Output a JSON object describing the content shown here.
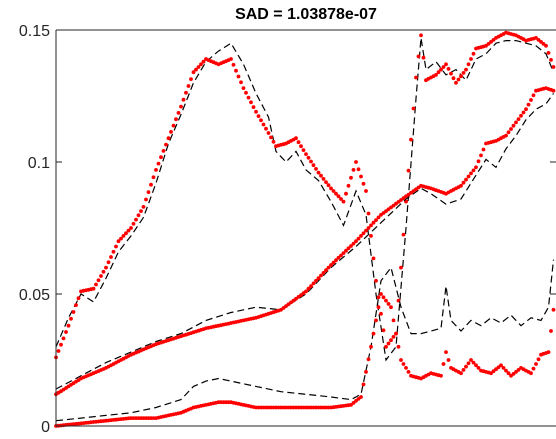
{
  "chart_data": {
    "type": "line",
    "title": "SAD = 1.03878e-07",
    "xlabel": "",
    "ylabel": "",
    "ylim": [
      0,
      0.15
    ],
    "xlim": [
      0,
      200
    ],
    "y_ticks": [
      {
        "value": 0,
        "label": "0"
      },
      {
        "value": 0.05,
        "label": "0.05"
      },
      {
        "value": 0.1,
        "label": "0.1"
      },
      {
        "value": 0.15,
        "label": "0.15"
      }
    ],
    "grid": false,
    "legend": "none",
    "colors": {
      "reference": "#000000",
      "estimate": "#ff0000",
      "axes": "#262626"
    },
    "series": [
      {
        "style": "dashed",
        "points": [
          [
            0,
            0.03
          ],
          [
            5,
            0.041
          ],
          [
            10,
            0.05
          ],
          [
            15,
            0.047
          ],
          [
            20,
            0.056
          ],
          [
            25,
            0.066
          ],
          [
            30,
            0.072
          ],
          [
            35,
            0.079
          ],
          [
            40,
            0.092
          ],
          [
            45,
            0.107
          ],
          [
            50,
            0.118
          ],
          [
            55,
            0.13
          ],
          [
            60,
            0.138
          ],
          [
            65,
            0.142
          ],
          [
            70,
            0.145
          ],
          [
            75,
            0.137
          ],
          [
            80,
            0.126
          ],
          [
            85,
            0.117
          ],
          [
            88,
            0.104
          ],
          [
            92,
            0.1
          ],
          [
            96,
            0.104
          ],
          [
            100,
            0.097
          ],
          [
            105,
            0.093
          ],
          [
            110,
            0.085
          ],
          [
            115,
            0.076
          ],
          [
            120,
            0.089
          ],
          [
            124,
            0.08
          ],
          [
            128,
            0.05
          ],
          [
            132,
            0.025
          ],
          [
            136,
            0.03
          ],
          [
            140,
            0.075
          ],
          [
            144,
            0.124
          ],
          [
            146,
            0.147
          ],
          [
            148,
            0.135
          ],
          [
            152,
            0.138
          ],
          [
            156,
            0.133
          ],
          [
            160,
            0.135
          ],
          [
            164,
            0.131
          ],
          [
            168,
            0.139
          ],
          [
            172,
            0.141
          ],
          [
            176,
            0.145
          ],
          [
            180,
            0.146
          ],
          [
            184,
            0.146
          ],
          [
            188,
            0.145
          ],
          [
            192,
            0.144
          ],
          [
            196,
            0.141
          ],
          [
            199,
            0.134
          ]
        ]
      },
      {
        "style": "dotted-markers",
        "points": [
          [
            0,
            0.026
          ],
          [
            5,
            0.038
          ],
          [
            10,
            0.051
          ],
          [
            15,
            0.052
          ],
          [
            20,
            0.06
          ],
          [
            25,
            0.07
          ],
          [
            30,
            0.075
          ],
          [
            35,
            0.083
          ],
          [
            40,
            0.097
          ],
          [
            45,
            0.109
          ],
          [
            50,
            0.121
          ],
          [
            55,
            0.134
          ],
          [
            60,
            0.139
          ],
          [
            65,
            0.137
          ],
          [
            70,
            0.139
          ],
          [
            75,
            0.128
          ],
          [
            80,
            0.119
          ],
          [
            85,
            0.111
          ],
          [
            88,
            0.106
          ],
          [
            92,
            0.107
          ],
          [
            96,
            0.109
          ],
          [
            100,
            0.103
          ],
          [
            105,
            0.096
          ],
          [
            110,
            0.09
          ],
          [
            115,
            0.085
          ],
          [
            120,
            0.1
          ],
          [
            124,
            0.089
          ],
          [
            128,
            0.055
          ],
          [
            132,
            0.03
          ],
          [
            136,
            0.035
          ],
          [
            140,
            0.085
          ],
          [
            144,
            0.132
          ],
          [
            146,
            0.148
          ],
          [
            148,
            0.131
          ],
          [
            152,
            0.133
          ],
          [
            156,
            0.137
          ],
          [
            160,
            0.13
          ],
          [
            164,
            0.135
          ],
          [
            168,
            0.143
          ],
          [
            172,
            0.144
          ],
          [
            176,
            0.147
          ],
          [
            180,
            0.149
          ],
          [
            184,
            0.148
          ],
          [
            188,
            0.146
          ],
          [
            192,
            0.147
          ],
          [
            196,
            0.144
          ],
          [
            199,
            0.136
          ]
        ]
      },
      {
        "style": "dashed",
        "points": [
          [
            0,
            0.014
          ],
          [
            10,
            0.019
          ],
          [
            20,
            0.024
          ],
          [
            30,
            0.028
          ],
          [
            40,
            0.032
          ],
          [
            50,
            0.035
          ],
          [
            60,
            0.04
          ],
          [
            70,
            0.043
          ],
          [
            80,
            0.045
          ],
          [
            90,
            0.044
          ],
          [
            100,
            0.05
          ],
          [
            110,
            0.06
          ],
          [
            120,
            0.068
          ],
          [
            130,
            0.077
          ],
          [
            140,
            0.086
          ],
          [
            146,
            0.09
          ],
          [
            150,
            0.088
          ],
          [
            156,
            0.084
          ],
          [
            162,
            0.086
          ],
          [
            168,
            0.095
          ],
          [
            172,
            0.101
          ],
          [
            176,
            0.098
          ],
          [
            180,
            0.105
          ],
          [
            184,
            0.11
          ],
          [
            188,
            0.116
          ],
          [
            192,
            0.12
          ],
          [
            196,
            0.122
          ],
          [
            199,
            0.126
          ]
        ]
      },
      {
        "style": "dotted-markers",
        "points": [
          [
            0,
            0.012
          ],
          [
            10,
            0.018
          ],
          [
            20,
            0.022
          ],
          [
            30,
            0.027
          ],
          [
            40,
            0.031
          ],
          [
            50,
            0.034
          ],
          [
            60,
            0.037
          ],
          [
            70,
            0.039
          ],
          [
            80,
            0.041
          ],
          [
            90,
            0.044
          ],
          [
            100,
            0.051
          ],
          [
            110,
            0.061
          ],
          [
            120,
            0.07
          ],
          [
            130,
            0.08
          ],
          [
            140,
            0.087
          ],
          [
            146,
            0.091
          ],
          [
            150,
            0.09
          ],
          [
            156,
            0.088
          ],
          [
            162,
            0.091
          ],
          [
            168,
            0.098
          ],
          [
            172,
            0.107
          ],
          [
            176,
            0.108
          ],
          [
            180,
            0.11
          ],
          [
            184,
            0.115
          ],
          [
            188,
            0.12
          ],
          [
            192,
            0.127
          ],
          [
            196,
            0.128
          ],
          [
            199,
            0.127
          ]
        ]
      },
      {
        "style": "dashed",
        "points": [
          [
            0,
            0.002
          ],
          [
            10,
            0.003
          ],
          [
            20,
            0.004
          ],
          [
            30,
            0.005
          ],
          [
            40,
            0.007
          ],
          [
            50,
            0.01
          ],
          [
            55,
            0.015
          ],
          [
            60,
            0.017
          ],
          [
            65,
            0.018
          ],
          [
            70,
            0.017
          ],
          [
            75,
            0.016
          ],
          [
            80,
            0.015
          ],
          [
            90,
            0.013
          ],
          [
            100,
            0.012
          ],
          [
            110,
            0.011
          ],
          [
            118,
            0.01
          ],
          [
            122,
            0.012
          ],
          [
            126,
            0.03
          ],
          [
            130,
            0.055
          ],
          [
            134,
            0.06
          ],
          [
            138,
            0.045
          ],
          [
            142,
            0.035
          ],
          [
            146,
            0.035
          ],
          [
            150,
            0.036
          ],
          [
            154,
            0.037
          ],
          [
            156,
            0.053
          ],
          [
            158,
            0.04
          ],
          [
            162,
            0.036
          ],
          [
            166,
            0.04
          ],
          [
            170,
            0.038
          ],
          [
            174,
            0.041
          ],
          [
            178,
            0.039
          ],
          [
            182,
            0.042
          ],
          [
            186,
            0.038
          ],
          [
            190,
            0.041
          ],
          [
            194,
            0.04
          ],
          [
            197,
            0.045
          ],
          [
            199,
            0.063
          ]
        ]
      },
      {
        "style": "dotted-markers",
        "points": [
          [
            0,
            0.0
          ],
          [
            10,
            0.001
          ],
          [
            20,
            0.002
          ],
          [
            30,
            0.003
          ],
          [
            40,
            0.003
          ],
          [
            50,
            0.005
          ],
          [
            55,
            0.007
          ],
          [
            60,
            0.008
          ],
          [
            65,
            0.009
          ],
          [
            70,
            0.009
          ],
          [
            75,
            0.008
          ],
          [
            80,
            0.007
          ],
          [
            90,
            0.007
          ],
          [
            100,
            0.007
          ],
          [
            110,
            0.007
          ],
          [
            118,
            0.008
          ],
          [
            122,
            0.011
          ],
          [
            126,
            0.03
          ],
          [
            130,
            0.05
          ],
          [
            134,
            0.045
          ],
          [
            138,
            0.025
          ],
          [
            142,
            0.019
          ],
          [
            146,
            0.018
          ],
          [
            150,
            0.02
          ],
          [
            154,
            0.019
          ],
          [
            156,
            0.028
          ],
          [
            158,
            0.022
          ],
          [
            162,
            0.02
          ],
          [
            166,
            0.025
          ],
          [
            170,
            0.021
          ],
          [
            174,
            0.02
          ],
          [
            178,
            0.023
          ],
          [
            182,
            0.019
          ],
          [
            186,
            0.022
          ],
          [
            190,
            0.02
          ],
          [
            194,
            0.027
          ],
          [
            197,
            0.028
          ],
          [
            199,
            0.044
          ]
        ]
      }
    ]
  }
}
